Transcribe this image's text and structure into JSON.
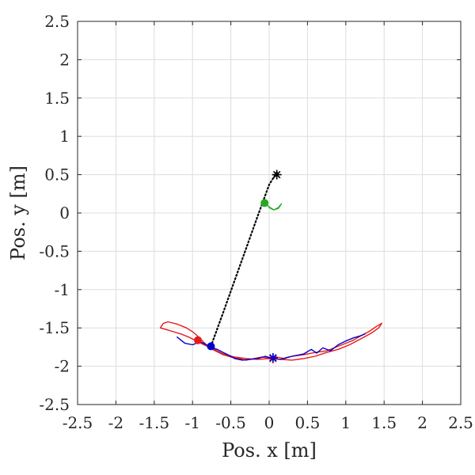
{
  "chart_data": {
    "type": "line",
    "title": "",
    "xlabel": "Pos. x [m]",
    "ylabel": "Pos. y [m]",
    "xlim": [
      -2.5,
      2.5
    ],
    "ylim": [
      -2.5,
      2.5
    ],
    "xticks": [
      -2.5,
      -2,
      -1.5,
      -1,
      -0.5,
      0,
      0.5,
      1,
      1.5,
      2,
      2.5
    ],
    "yticks": [
      -2.5,
      -2,
      -1.5,
      -1,
      -0.5,
      0,
      0.5,
      1,
      1.5,
      2,
      2.5
    ],
    "xtick_labels": [
      "-2.5",
      "-2",
      "-1.5",
      "-1",
      "-0.5",
      "0",
      "0.5",
      "1",
      "1.5",
      "2",
      "2.5"
    ],
    "ytick_labels": [
      "-2.5",
      "-2",
      "-1.5",
      "-1",
      "-0.5",
      "0",
      "0.5",
      "1",
      "1.5",
      "2",
      "2.5"
    ],
    "grid": true,
    "legend": "none",
    "colors": {
      "red": "#e41a1c",
      "blue": "#0000cc",
      "green": "#22aa22",
      "black": "#000000",
      "grid": "#dddddd",
      "axis": "#262626"
    },
    "series": [
      {
        "color": "red",
        "style": "solid",
        "x": [
          -1.42,
          -1.38,
          -1.32,
          -1.2,
          -1.08,
          -1.0,
          -0.94,
          -0.88,
          -0.82,
          -0.78,
          -0.7,
          -0.6,
          -0.5,
          -0.4,
          -0.3,
          -0.2,
          -0.1,
          0.0,
          0.1,
          0.2,
          0.3,
          0.45,
          0.6,
          0.75,
          0.9,
          1.0,
          1.1,
          1.2,
          1.3,
          1.4,
          1.47,
          1.43,
          1.33,
          1.2,
          1.05,
          0.9,
          0.75,
          0.6,
          0.45,
          0.3,
          0.15,
          0.0,
          -0.15,
          -0.3,
          -0.45,
          -0.6,
          -0.72,
          -0.85,
          -0.95,
          -1.05,
          -1.15,
          -1.25,
          -1.35,
          -1.42
        ],
        "y": [
          -1.5,
          -1.44,
          -1.42,
          -1.45,
          -1.5,
          -1.55,
          -1.6,
          -1.66,
          -1.72,
          -1.76,
          -1.8,
          -1.85,
          -1.88,
          -1.9,
          -1.92,
          -1.9,
          -1.88,
          -1.89,
          -1.88,
          -1.9,
          -1.87,
          -1.85,
          -1.82,
          -1.8,
          -1.74,
          -1.7,
          -1.66,
          -1.6,
          -1.55,
          -1.48,
          -1.44,
          -1.5,
          -1.57,
          -1.64,
          -1.72,
          -1.78,
          -1.82,
          -1.87,
          -1.9,
          -1.92,
          -1.91,
          -1.9,
          -1.91,
          -1.9,
          -1.88,
          -1.84,
          -1.78,
          -1.72,
          -1.67,
          -1.62,
          -1.58,
          -1.55,
          -1.52,
          -1.5
        ]
      },
      {
        "color": "blue",
        "style": "solid",
        "x": [
          -1.2,
          -1.1,
          -1.0,
          -0.9,
          -0.82,
          -0.76,
          -0.68,
          -0.6,
          -0.52,
          -0.45,
          -0.35,
          -0.25,
          -0.15,
          -0.05,
          0.05,
          0.15,
          0.25,
          0.35,
          0.45,
          0.55,
          0.62,
          0.7,
          0.8,
          0.9,
          1.0,
          1.1,
          1.2,
          1.25
        ],
        "y": [
          -1.62,
          -1.7,
          -1.72,
          -1.68,
          -1.72,
          -1.75,
          -1.78,
          -1.82,
          -1.86,
          -1.9,
          -1.92,
          -1.91,
          -1.9,
          -1.87,
          -1.9,
          -1.91,
          -1.88,
          -1.86,
          -1.84,
          -1.78,
          -1.83,
          -1.76,
          -1.8,
          -1.72,
          -1.67,
          -1.63,
          -1.6,
          -1.58
        ]
      },
      {
        "color": "green",
        "style": "solid",
        "x": [
          -0.06,
          0.0,
          0.06,
          0.12,
          0.16,
          0.12,
          0.06,
          0.0
        ],
        "y": [
          0.13,
          0.08,
          0.04,
          0.07,
          0.12,
          0.06,
          0.04,
          0.07
        ]
      },
      {
        "color": "black",
        "style": "dotted",
        "x": [
          -0.76,
          -0.6,
          -0.45,
          -0.3,
          -0.15,
          0.0,
          0.1
        ],
        "y": [
          -1.74,
          -1.3,
          -0.88,
          -0.46,
          -0.04,
          0.37,
          0.53
        ]
      }
    ],
    "markers": [
      {
        "shape": "circle",
        "color": "red",
        "x": -0.93,
        "y": -1.66
      },
      {
        "shape": "circle",
        "color": "blue",
        "x": -0.76,
        "y": -1.74
      },
      {
        "shape": "circle",
        "color": "green",
        "x": -0.06,
        "y": 0.13
      },
      {
        "shape": "star",
        "color": "black",
        "x": 0.1,
        "y": 0.5
      },
      {
        "shape": "star",
        "color": "red",
        "x": 0.05,
        "y": -1.9
      },
      {
        "shape": "star",
        "color": "blue",
        "x": 0.05,
        "y": -1.89
      }
    ]
  }
}
